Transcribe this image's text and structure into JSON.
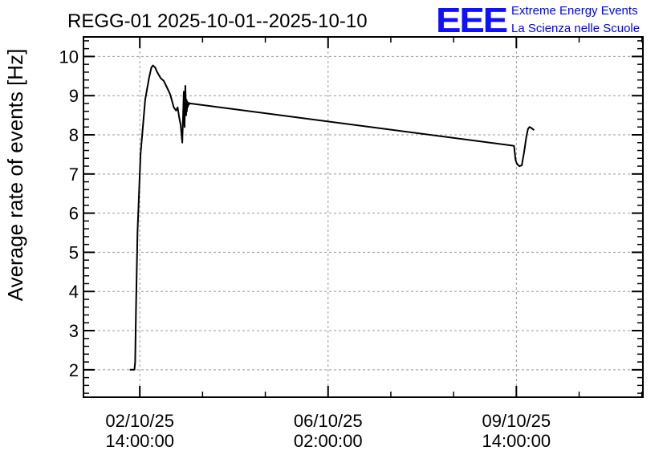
{
  "chart_data": {
    "type": "line",
    "title": "REGG-01 2025-10-01--2025-10-10",
    "ylabel": "Average rate of events [Hz]",
    "xlabel": "",
    "ylim": [
      1.3,
      10.5
    ],
    "xlim": [
      3.1,
      10.35
    ],
    "grid": true,
    "legend": "none",
    "line_color": "#000000",
    "grid_color": "#999999",
    "y_ticks": [
      2,
      3,
      4,
      5,
      6,
      7,
      8,
      9,
      10
    ],
    "x_ticks": [
      {
        "x": 3.83,
        "date": "02/10/25",
        "time": "14:00:00"
      },
      {
        "x": 6.27,
        "date": "06/10/25",
        "time": "02:00:00"
      },
      {
        "x": 8.71,
        "date": "09/10/25",
        "time": "14:00:00"
      }
    ],
    "series": [
      {
        "x": [
          3.7,
          3.76,
          3.77,
          3.78,
          3.8,
          3.84,
          3.9,
          3.95,
          3.98,
          4.0,
          4.03,
          4.05,
          4.1,
          4.14,
          4.18,
          4.22,
          4.24,
          4.27,
          4.3,
          4.32,
          4.34,
          4.36,
          4.38,
          4.4,
          4.41,
          4.42,
          4.43,
          4.435,
          4.44,
          4.445,
          4.45,
          4.455,
          4.46,
          4.465,
          4.47,
          4.475,
          4.48,
          4.49,
          8.68,
          8.7,
          8.72,
          8.75,
          8.78,
          8.81,
          8.84,
          8.86,
          8.88,
          8.9,
          8.94
        ],
        "y": [
          2.0,
          2.0,
          2.2,
          3.5,
          5.5,
          7.5,
          8.9,
          9.45,
          9.72,
          9.77,
          9.72,
          9.62,
          9.45,
          9.38,
          9.22,
          9.05,
          8.92,
          8.7,
          8.62,
          8.7,
          8.45,
          8.25,
          7.8,
          9.1,
          8.2,
          9.25,
          8.5,
          8.9,
          8.6,
          8.85,
          8.7,
          8.8,
          8.75,
          8.82,
          8.78,
          8.8,
          8.8,
          8.8,
          7.72,
          7.35,
          7.25,
          7.2,
          7.22,
          7.55,
          7.95,
          8.15,
          8.2,
          8.18,
          8.12
        ]
      }
    ]
  },
  "brand": {
    "logo": "EEE",
    "line1": "Extreme Energy Events",
    "line2": "La Scienza nelle Scuole",
    "color": "#0000ff"
  }
}
